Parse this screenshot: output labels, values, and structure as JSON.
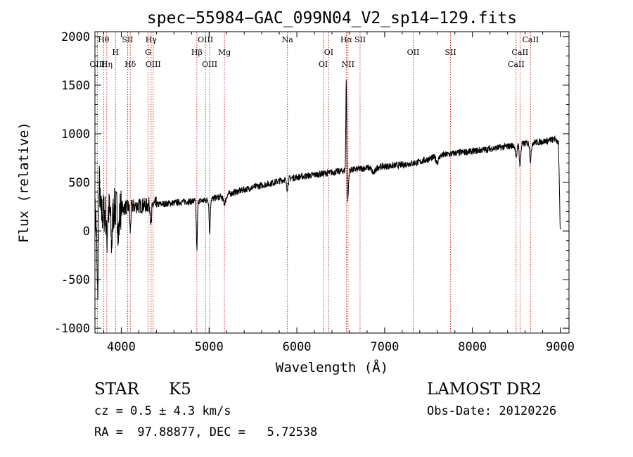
{
  "chart_data": {
    "type": "line",
    "title": "spec−55984−GAC_099N04_V2_sp14−129.fits",
    "xlabel": "Wavelength (Å)",
    "ylabel": "Flux (relative)",
    "xlim": [
      3700,
      9100
    ],
    "ylim": [
      -1050,
      2050
    ],
    "x_ticks": [
      4000,
      5000,
      6000,
      7000,
      8000,
      9000
    ],
    "y_ticks": [
      -1000,
      -500,
      0,
      500,
      1000,
      1500,
      2000
    ],
    "grid": false,
    "line_color": "#000000",
    "marker_color": "#c00000",
    "continuum": [
      [
        3700,
        150
      ],
      [
        3900,
        220
      ],
      [
        4100,
        250
      ],
      [
        4300,
        265
      ],
      [
        4500,
        280
      ],
      [
        4700,
        300
      ],
      [
        4900,
        310
      ],
      [
        5000,
        320
      ],
      [
        5100,
        345
      ],
      [
        5300,
        400
      ],
      [
        5500,
        450
      ],
      [
        5700,
        490
      ],
      [
        5900,
        540
      ],
      [
        6100,
        565
      ],
      [
        6300,
        590
      ],
      [
        6500,
        615
      ],
      [
        6600,
        625
      ],
      [
        6800,
        650
      ],
      [
        7000,
        665
      ],
      [
        7200,
        680
      ],
      [
        7400,
        710
      ],
      [
        7600,
        770
      ],
      [
        7800,
        800
      ],
      [
        8000,
        820
      ],
      [
        8200,
        845
      ],
      [
        8400,
        870
      ],
      [
        8600,
        900
      ],
      [
        8800,
        920
      ],
      [
        8950,
        945
      ],
      [
        8980,
        900
      ],
      [
        9000,
        0
      ]
    ],
    "features": [
      {
        "w": 3730,
        "d": -800,
        "width": 8
      },
      {
        "w": 3750,
        "d": 350,
        "width": 6
      },
      {
        "w": 3835,
        "d": -300,
        "width": 6
      },
      {
        "w": 3890,
        "d": -350,
        "width": 8
      },
      {
        "w": 3970,
        "d": -250,
        "width": 8
      },
      {
        "w": 4102,
        "d": -250,
        "width": 6
      },
      {
        "w": 4340,
        "d": -230,
        "width": 6
      },
      {
        "w": 4861,
        "d": -500,
        "width": 6
      },
      {
        "w": 5007,
        "d": -350,
        "width": 6
      },
      {
        "w": 5175,
        "d": -80,
        "width": 15
      },
      {
        "w": 5890,
        "d": -100,
        "width": 10
      },
      {
        "w": 6563,
        "d": 980,
        "width": 5
      },
      {
        "w": 6580,
        "d": -300,
        "width": 8
      },
      {
        "w": 6875,
        "d": -60,
        "width": 20
      },
      {
        "w": 7600,
        "d": -60,
        "width": 15
      },
      {
        "w": 8498,
        "d": -150,
        "width": 8
      },
      {
        "w": 8542,
        "d": -220,
        "width": 8
      },
      {
        "w": 8662,
        "d": -180,
        "width": 8
      }
    ],
    "noise": [
      {
        "from": 3700,
        "to": 4000,
        "amp": 220
      },
      {
        "from": 4000,
        "to": 4400,
        "amp": 80
      },
      {
        "from": 4400,
        "to": 9000,
        "amp": 35
      }
    ],
    "lines": [
      {
        "name": "OIII",
        "w": 3727,
        "row": 3
      },
      {
        "name": "Hθ",
        "w": 3798,
        "row": 0
      },
      {
        "name": "Hη",
        "w": 3835,
        "row": 3
      },
      {
        "name": "H",
        "w": 3934,
        "row": 1
      },
      {
        "name": "SII",
        "w": 4072,
        "row": 0
      },
      {
        "name": "Hδ",
        "w": 4102,
        "row": 3
      },
      {
        "name": "Hγ",
        "w": 4340,
        "row": 0
      },
      {
        "name": "G",
        "w": 4305,
        "row": 1
      },
      {
        "name": "OIII",
        "w": 4363,
        "row": 3
      },
      {
        "name": "Hβ",
        "w": 4861,
        "row": 2
      },
      {
        "name": "OIII",
        "w": 4959,
        "row": 0
      },
      {
        "name": "OIII",
        "w": 5007,
        "row": 3
      },
      {
        "name": "Mg",
        "w": 5175,
        "row": 2
      },
      {
        "name": "Na",
        "w": 5893,
        "row": 0
      },
      {
        "name": "OI",
        "w": 6300,
        "row": 3
      },
      {
        "name": "OI",
        "w": 6363,
        "row": 1
      },
      {
        "name": "Hα",
        "w": 6563,
        "row": 0
      },
      {
        "name": "NII",
        "w": 6583,
        "row": 3
      },
      {
        "name": "SII",
        "w": 6720,
        "row": 0
      },
      {
        "name": "OII",
        "w": 7325,
        "row": 1
      },
      {
        "name": "SII",
        "w": 7751,
        "row": 1
      },
      {
        "name": "CaII",
        "w": 8498,
        "row": 3
      },
      {
        "name": "CaII",
        "w": 8542,
        "row": 1
      },
      {
        "name": "CaII",
        "w": 8662,
        "row": 0
      }
    ]
  },
  "info": {
    "class": "STAR",
    "subclass": "K5",
    "survey": "LAMOST DR2",
    "cz": "cz = 0.5 ± 4.3 km/s",
    "obsdate": "Obs-Date: 20120226",
    "coords": "RA =  97.88877, DEC =   5.72538"
  }
}
